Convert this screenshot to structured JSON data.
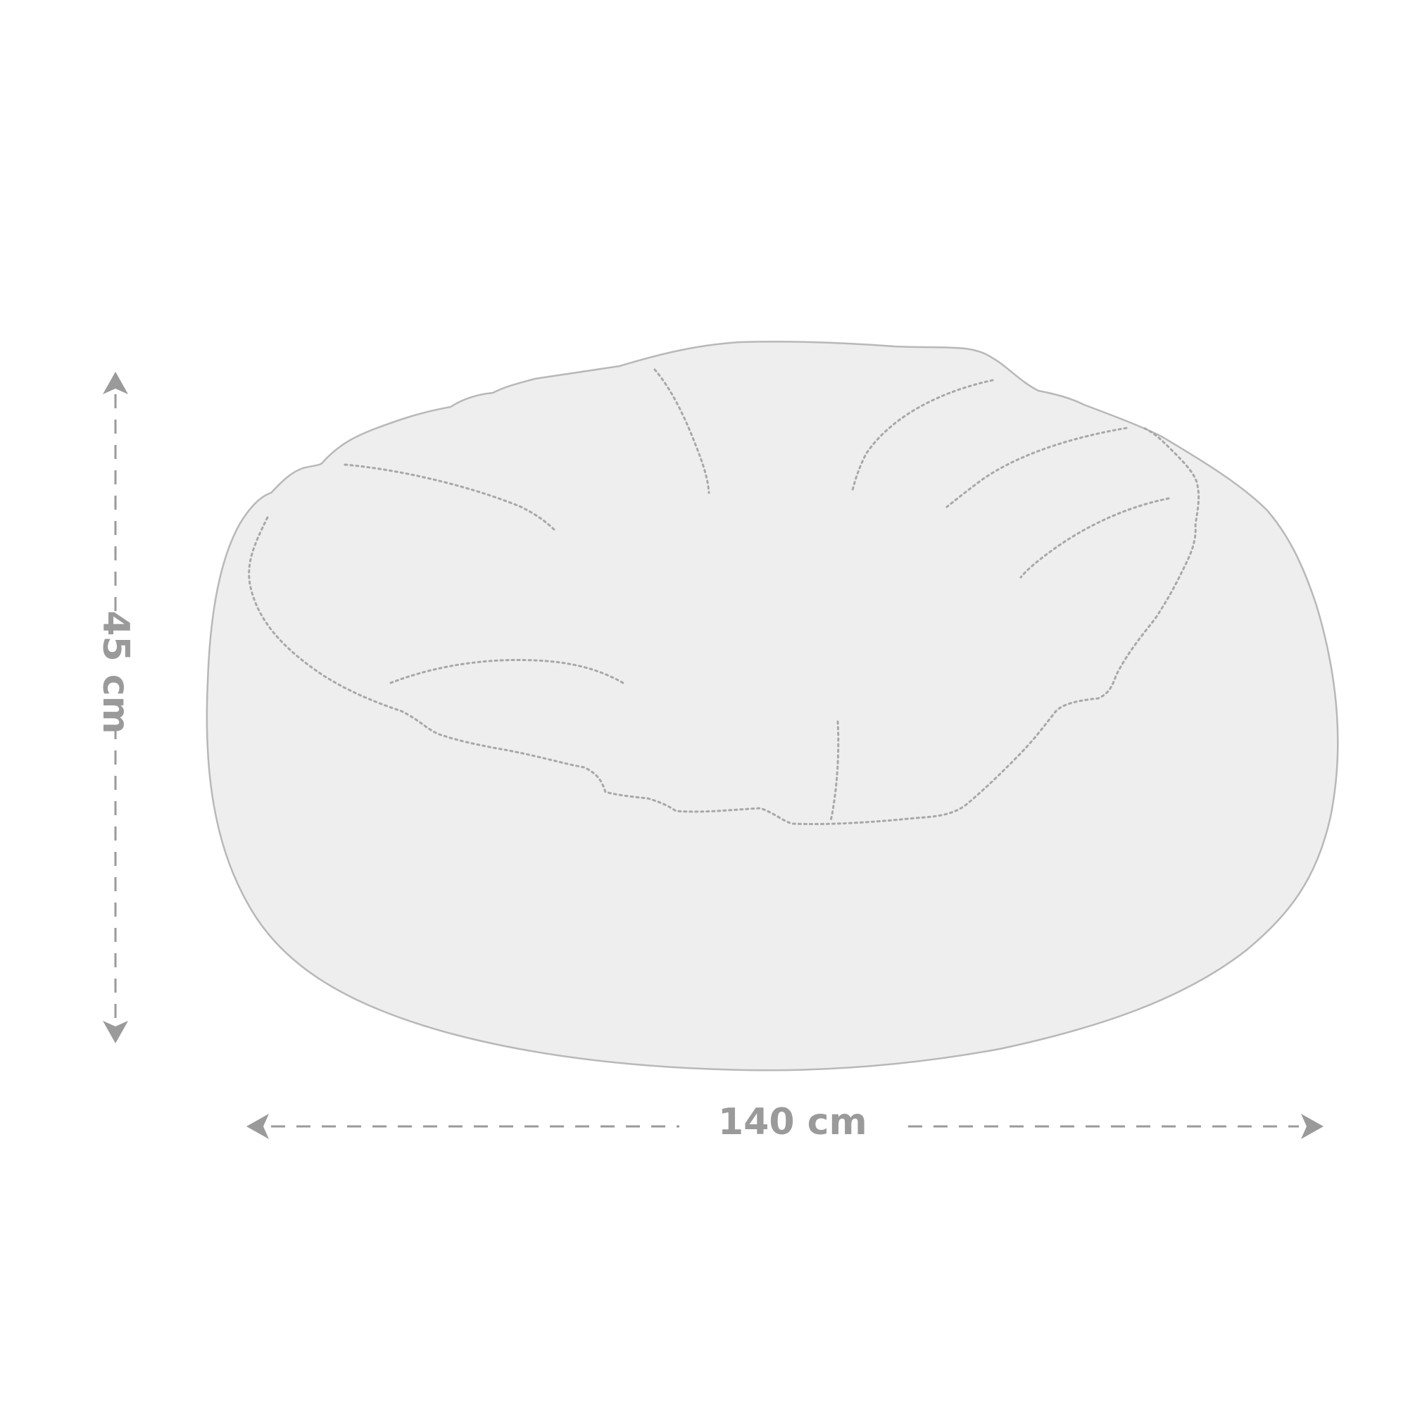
{
  "dimensions": {
    "height_label": "45 cm",
    "width_label": "140 cm"
  },
  "colors": {
    "arrow": "#9a9a9a",
    "outline": "#b8b8b8",
    "fill": "#eeeeee",
    "seam": "#a8a8a8"
  }
}
